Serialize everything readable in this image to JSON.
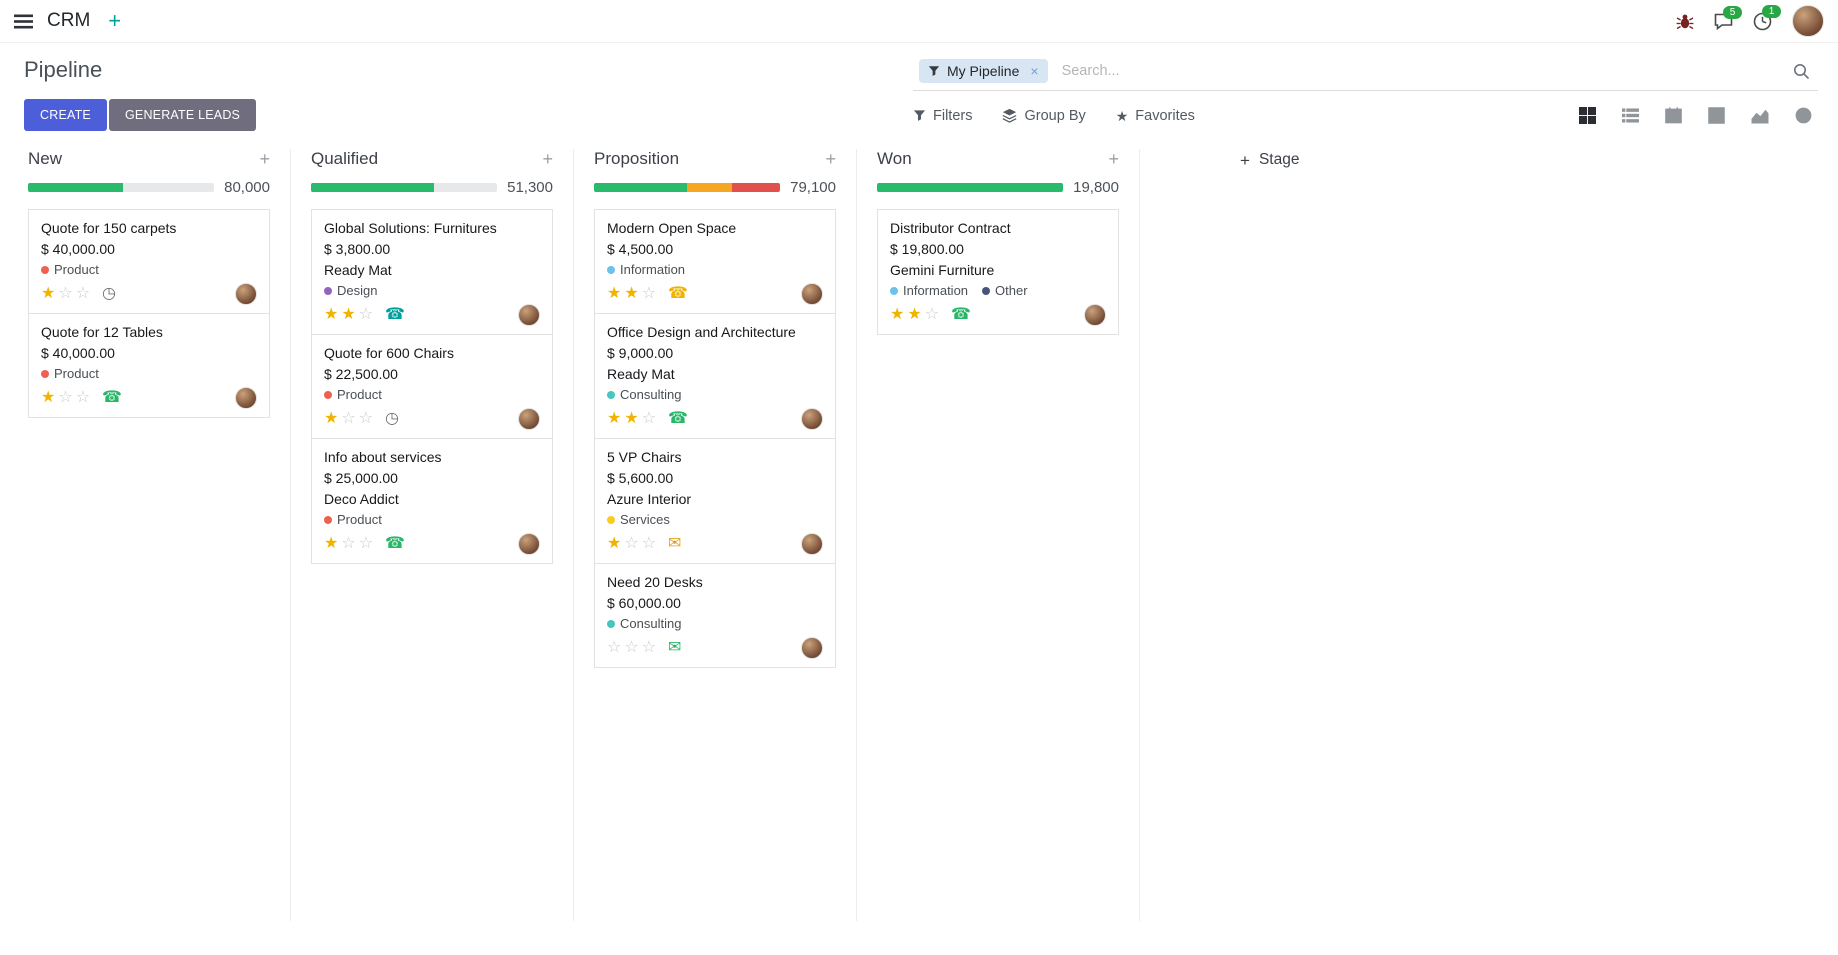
{
  "icons": {
    "plus": "+",
    "close": "×",
    "star": "★",
    "star_filled": "★",
    "star_empty": "☆",
    "phone": "☎",
    "envelope": "✉",
    "clock": "◷"
  },
  "colors": {
    "primary": "#4c5fd8",
    "secondary": "#6f6d7e",
    "progress_green": "#2aba6c",
    "progress_yellow": "#f5a623",
    "progress_red": "#e2504c",
    "badge_green": "#28a745",
    "star_gold": "#f0b400"
  },
  "navbar": {
    "app_name": "CRM",
    "message_badge": "5",
    "activity_badge": "1"
  },
  "control_panel": {
    "title": "Pipeline",
    "create_label": "CREATE",
    "generate_leads_label": "GENERATE LEADS",
    "search": {
      "facet_label": "My Pipeline",
      "placeholder": "Search..."
    },
    "filters_label": "Filters",
    "group_by_label": "Group By",
    "favorites_label": "Favorites"
  },
  "view_switcher": {
    "views": [
      "kanban",
      "list",
      "calendar",
      "pivot",
      "graph",
      "activity"
    ],
    "active_view": "kanban"
  },
  "kanban": {
    "add_stage_label": "Stage",
    "columns": [
      {
        "name": "New",
        "counter": "80,000",
        "progress": [
          {
            "color": "#2aba6c",
            "pct": 51
          }
        ],
        "cards": [
          {
            "title": "Quote for 150 carpets",
            "amount": "$ 40,000.00",
            "partner": "",
            "tags": [
              {
                "label": "Product",
                "color": "#f06050"
              }
            ],
            "stars": 1,
            "activity": {
              "type": "clock",
              "color": "#6f6f6f"
            }
          },
          {
            "title": "Quote for 12 Tables",
            "amount": "$ 40,000.00",
            "partner": "",
            "tags": [
              {
                "label": "Product",
                "color": "#f06050"
              }
            ],
            "stars": 1,
            "activity": {
              "type": "phone",
              "color": "#28b668"
            }
          }
        ]
      },
      {
        "name": "Qualified",
        "counter": "51,300",
        "progress": [
          {
            "color": "#2aba6c",
            "pct": 66
          }
        ],
        "cards": [
          {
            "title": "Global Solutions: Furnitures",
            "amount": "$ 3,800.00",
            "partner": "Ready Mat",
            "tags": [
              {
                "label": "Design",
                "color": "#9365b8"
              }
            ],
            "stars": 2,
            "activity": {
              "type": "phone",
              "color": "#00a09d"
            }
          },
          {
            "title": "Quote for 600 Chairs",
            "amount": "$ 22,500.00",
            "partner": "",
            "tags": [
              {
                "label": "Product",
                "color": "#f06050"
              }
            ],
            "stars": 1,
            "activity": {
              "type": "clock",
              "color": "#6f6f6f"
            }
          },
          {
            "title": "Info about services",
            "amount": "$ 25,000.00",
            "partner": "Deco Addict",
            "tags": [
              {
                "label": "Product",
                "color": "#f06050"
              }
            ],
            "stars": 1,
            "activity": {
              "type": "phone",
              "color": "#28b668"
            }
          }
        ]
      },
      {
        "name": "Proposition",
        "counter": "79,100",
        "progress": [
          {
            "color": "#2aba6c",
            "pct": 50
          },
          {
            "color": "#f5a623",
            "pct": 24
          },
          {
            "color": "#e2504c",
            "pct": 26
          }
        ],
        "cards": [
          {
            "title": "Modern Open Space",
            "amount": "$ 4,500.00",
            "partner": "",
            "tags": [
              {
                "label": "Information",
                "color": "#6cc1ed"
              }
            ],
            "stars": 2,
            "activity": {
              "type": "phone",
              "color": "#efb300"
            }
          },
          {
            "title": "Office Design and Architecture",
            "amount": "$ 9,000.00",
            "partner": "Ready Mat",
            "tags": [
              {
                "label": "Consulting",
                "color": "#47c5c0"
              }
            ],
            "stars": 2,
            "activity": {
              "type": "phone",
              "color": "#28b668"
            }
          },
          {
            "title": "5 VP Chairs",
            "amount": "$ 5,600.00",
            "partner": "Azure Interior",
            "tags": [
              {
                "label": "Services",
                "color": "#f7cd1f"
              }
            ],
            "stars": 1,
            "activity": {
              "type": "envelope",
              "color": "#e0a11d"
            }
          },
          {
            "title": "Need 20 Desks",
            "amount": "$ 60,000.00",
            "partner": "",
            "tags": [
              {
                "label": "Consulting",
                "color": "#47c5c0"
              }
            ],
            "stars": 0,
            "activity": {
              "type": "envelope",
              "color": "#28b668"
            }
          }
        ]
      },
      {
        "name": "Won",
        "counter": "19,800",
        "progress": [
          {
            "color": "#2aba6c",
            "pct": 100
          }
        ],
        "cards": [
          {
            "title": "Distributor Contract",
            "amount": "$ 19,800.00",
            "partner": "Gemini Furniture",
            "tags": [
              {
                "label": "Information",
                "color": "#6cc1ed"
              },
              {
                "label": "Other",
                "color": "#475577"
              }
            ],
            "stars": 2,
            "activity": {
              "type": "phone",
              "color": "#28b668"
            }
          }
        ]
      }
    ]
  }
}
